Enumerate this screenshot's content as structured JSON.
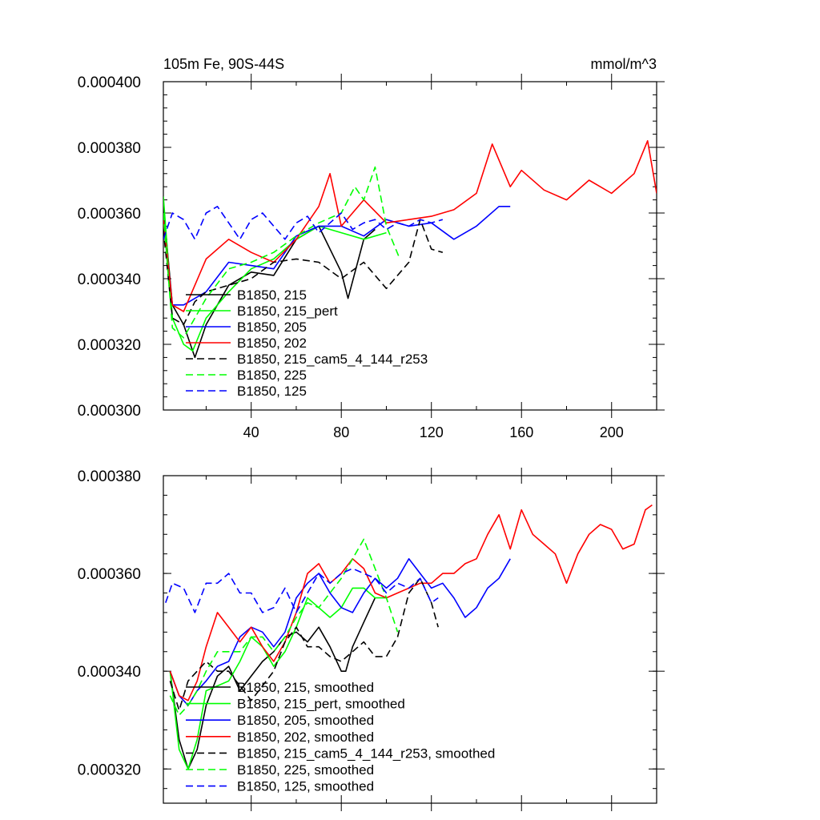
{
  "chart_data": [
    {
      "type": "line",
      "title": "105m Fe, 90S-44S",
      "units": "mmol/m^3",
      "xlabel": "",
      "ylabel": "",
      "xlim": [
        1,
        220
      ],
      "ylim": [
        0.0003,
        0.0004
      ],
      "x_ticks": [
        40,
        80,
        120,
        160,
        200
      ],
      "x_tick_labels": [
        "40",
        "80",
        "120",
        "160",
        "200"
      ],
      "y_ticks": [
        0.0003,
        0.00032,
        0.00034,
        0.00036,
        0.00038,
        0.0004
      ],
      "y_tick_labels": [
        "0.000300",
        "0.000320",
        "0.000340",
        "0.000360",
        "0.000380",
        "0.000400"
      ],
      "legend_position": "lower-left",
      "series": [
        {
          "name": "B1850, 215",
          "color": "#000000",
          "dash": "solid",
          "x": [
            1,
            5,
            10,
            15,
            20,
            30,
            40,
            50,
            60,
            70,
            80,
            83,
            90,
            95
          ],
          "y": [
            0.000362,
            0.000332,
            0.000326,
            0.000316,
            0.000326,
            0.000338,
            0.000342,
            0.000341,
            0.000352,
            0.000356,
            0.000342,
            0.000334,
            0.000352,
            0.000355
          ]
        },
        {
          "name": "B1850, 215_pert",
          "color": "#00ff00",
          "dash": "solid",
          "x": [
            1,
            5,
            10,
            14,
            20,
            30,
            40,
            50,
            60,
            70,
            80,
            90,
            100
          ],
          "y": [
            0.000365,
            0.000328,
            0.00032,
            0.000318,
            0.000328,
            0.000336,
            0.000343,
            0.000346,
            0.000352,
            0.000356,
            0.000354,
            0.000352,
            0.000354
          ]
        },
        {
          "name": "B1850, 205",
          "color": "#0000ff",
          "dash": "solid",
          "x": [
            1,
            5,
            10,
            20,
            30,
            40,
            50,
            60,
            70,
            80,
            90,
            100,
            110,
            120,
            130,
            140,
            150,
            155
          ],
          "y": [
            0.000358,
            0.000332,
            0.000332,
            0.000336,
            0.000345,
            0.000344,
            0.000343,
            0.000353,
            0.000356,
            0.000356,
            0.000353,
            0.000358,
            0.000356,
            0.000357,
            0.000352,
            0.000356,
            0.000362,
            0.000362
          ]
        },
        {
          "name": "B1850, 202",
          "color": "#ff0000",
          "dash": "solid",
          "x": [
            1,
            5,
            10,
            20,
            30,
            40,
            50,
            60,
            70,
            75,
            80,
            90,
            100,
            110,
            120,
            130,
            140,
            147,
            155,
            160,
            170,
            180,
            190,
            200,
            210,
            216,
            220
          ],
          "y": [
            0.000358,
            0.000332,
            0.00033,
            0.000346,
            0.000352,
            0.000348,
            0.000345,
            0.000352,
            0.000362,
            0.000372,
            0.000356,
            0.000364,
            0.000357,
            0.000358,
            0.000359,
            0.000361,
            0.000366,
            0.000381,
            0.000368,
            0.000373,
            0.000367,
            0.000364,
            0.00037,
            0.000366,
            0.000372,
            0.000382,
            0.000366
          ]
        },
        {
          "name": "B1850, 215_cam5_4_144_r253",
          "color": "#000000",
          "dash": "dashed",
          "x": [
            1,
            5,
            10,
            15,
            20,
            30,
            40,
            50,
            60,
            70,
            80,
            90,
            100,
            105,
            110,
            115,
            120,
            125
          ],
          "y": [
            0.000355,
            0.000328,
            0.000326,
            0.000333,
            0.000336,
            0.000338,
            0.00034,
            0.000345,
            0.000346,
            0.000345,
            0.00034,
            0.000345,
            0.000337,
            0.000341,
            0.000345,
            0.000358,
            0.000349,
            0.000348
          ]
        },
        {
          "name": "B1850, 225",
          "color": "#00ff00",
          "dash": "dashed",
          "x": [
            1,
            5,
            10,
            20,
            30,
            40,
            50,
            60,
            70,
            80,
            86,
            90,
            95,
            100,
            106
          ],
          "y": [
            0.00036,
            0.000325,
            0.000322,
            0.000334,
            0.000343,
            0.000345,
            0.000348,
            0.000353,
            0.000357,
            0.00036,
            0.000368,
            0.000364,
            0.000374,
            0.000356,
            0.000346
          ]
        },
        {
          "name": "B1850, 125",
          "color": "#0000ff",
          "dash": "dashed",
          "x": [
            1,
            5,
            10,
            15,
            20,
            25,
            30,
            35,
            40,
            45,
            50,
            55,
            60,
            65,
            70,
            75,
            80,
            85,
            90,
            95,
            100,
            105,
            110,
            115,
            120,
            125
          ],
          "y": [
            0.000352,
            0.00036,
            0.000358,
            0.000352,
            0.00036,
            0.000362,
            0.000357,
            0.000352,
            0.000358,
            0.00036,
            0.000356,
            0.000352,
            0.000357,
            0.000359,
            0.000354,
            0.000357,
            0.00036,
            0.000355,
            0.000357,
            0.000358,
            0.000355,
            0.000357,
            0.000356,
            0.000358,
            0.000357,
            0.000358
          ]
        }
      ]
    },
    {
      "type": "line",
      "title": "",
      "xlabel": "",
      "ylabel": "",
      "xlim": [
        1,
        220
      ],
      "ylim": [
        0.000313,
        0.00038
      ],
      "x_ticks": [
        40,
        80,
        120,
        160,
        200
      ],
      "y_ticks": [
        0.00032,
        0.00034,
        0.00036,
        0.00038
      ],
      "y_tick_labels": [
        "0.000320",
        "0.000340",
        "0.000360",
        "0.000380"
      ],
      "legend_position": "lower-left",
      "series": [
        {
          "name": "B1850, 215, smoothed",
          "color": "#000000",
          "dash": "solid",
          "x": [
            4,
            8,
            12,
            16,
            20,
            25,
            30,
            35,
            40,
            45,
            50,
            55,
            60,
            65,
            70,
            75,
            80,
            82,
            85,
            90,
            95
          ],
          "y": [
            0.00034,
            0.000326,
            0.00032,
            0.000324,
            0.000333,
            0.000339,
            0.000341,
            0.000336,
            0.000339,
            0.000342,
            0.000344,
            0.000347,
            0.000348,
            0.000346,
            0.000349,
            0.000345,
            0.00034,
            0.00034,
            0.000345,
            0.00035,
            0.000355
          ]
        },
        {
          "name": "B1850, 215_pert, smoothed",
          "color": "#00ff00",
          "dash": "solid",
          "x": [
            4,
            8,
            12,
            16,
            20,
            25,
            30,
            35,
            40,
            45,
            50,
            55,
            60,
            65,
            70,
            75,
            80,
            85,
            90,
            95,
            100
          ],
          "y": [
            0.00034,
            0.000324,
            0.00032,
            0.000326,
            0.000336,
            0.000337,
            0.000338,
            0.000342,
            0.000347,
            0.000345,
            0.000341,
            0.000344,
            0.000349,
            0.000355,
            0.000353,
            0.000351,
            0.000353,
            0.000357,
            0.000357,
            0.000355,
            0.000355
          ]
        },
        {
          "name": "B1850, 205, smoothed",
          "color": "#0000ff",
          "dash": "solid",
          "x": [
            4,
            8,
            12,
            16,
            20,
            25,
            30,
            35,
            40,
            45,
            50,
            55,
            60,
            65,
            70,
            75,
            80,
            85,
            90,
            95,
            100,
            105,
            110,
            115,
            120,
            125,
            130,
            135,
            140,
            145,
            150,
            155
          ],
          "y": [
            0.00034,
            0.000335,
            0.000333,
            0.000336,
            0.000338,
            0.000341,
            0.000342,
            0.000347,
            0.000349,
            0.000348,
            0.000345,
            0.000348,
            0.000355,
            0.000358,
            0.00036,
            0.000356,
            0.000353,
            0.000352,
            0.000356,
            0.000359,
            0.000357,
            0.000359,
            0.000363,
            0.00036,
            0.000357,
            0.000358,
            0.000355,
            0.000351,
            0.000353,
            0.000357,
            0.000359,
            0.000363
          ]
        },
        {
          "name": "B1850, 202, smoothed",
          "color": "#ff0000",
          "dash": "solid",
          "x": [
            4,
            8,
            12,
            16,
            20,
            25,
            30,
            35,
            40,
            45,
            50,
            55,
            60,
            65,
            70,
            75,
            80,
            85,
            90,
            95,
            100,
            105,
            110,
            115,
            120,
            125,
            130,
            135,
            140,
            145,
            150,
            155,
            160,
            165,
            170,
            175,
            180,
            185,
            190,
            195,
            200,
            205,
            210,
            215,
            218
          ],
          "y": [
            0.00034,
            0.000335,
            0.000334,
            0.000338,
            0.000345,
            0.000352,
            0.000349,
            0.000346,
            0.000349,
            0.000345,
            0.000342,
            0.000346,
            0.000352,
            0.00036,
            0.000362,
            0.000358,
            0.00036,
            0.000363,
            0.000361,
            0.000356,
            0.000355,
            0.000356,
            0.000357,
            0.000358,
            0.000358,
            0.00036,
            0.00036,
            0.000362,
            0.000363,
            0.000368,
            0.000372,
            0.000365,
            0.000373,
            0.000368,
            0.000366,
            0.000364,
            0.000358,
            0.000364,
            0.000368,
            0.00037,
            0.000369,
            0.000365,
            0.000366,
            0.000373,
            0.000374
          ]
        },
        {
          "name": "B1850, 215_cam5_4_144_r253, smoothed",
          "color": "#000000",
          "dash": "dashed",
          "x": [
            4,
            8,
            12,
            16,
            20,
            25,
            30,
            35,
            40,
            45,
            50,
            55,
            60,
            65,
            70,
            75,
            80,
            85,
            90,
            95,
            100,
            105,
            110,
            115,
            120,
            123
          ],
          "y": [
            0.000338,
            0.000332,
            0.000338,
            0.00034,
            0.000342,
            0.00034,
            0.00034,
            0.000337,
            0.000334,
            0.000337,
            0.00034,
            0.000346,
            0.000349,
            0.000345,
            0.000345,
            0.000343,
            0.000342,
            0.000344,
            0.000346,
            0.000343,
            0.000343,
            0.000347,
            0.000356,
            0.000359,
            0.000354,
            0.000349
          ]
        },
        {
          "name": "B1850, 225, smoothed",
          "color": "#00ff00",
          "dash": "dashed",
          "x": [
            4,
            8,
            12,
            16,
            20,
            25,
            30,
            35,
            40,
            45,
            50,
            55,
            60,
            65,
            70,
            75,
            80,
            85,
            90,
            95,
            100,
            105
          ],
          "y": [
            0.000335,
            0.000331,
            0.000333,
            0.000336,
            0.00034,
            0.000344,
            0.000344,
            0.000344,
            0.000347,
            0.000347,
            0.000344,
            0.000347,
            0.000351,
            0.000354,
            0.000353,
            0.000356,
            0.000359,
            0.000363,
            0.000367,
            0.000361,
            0.000355,
            0.000348
          ]
        },
        {
          "name": "B1850, 125, smoothed",
          "color": "#0000ff",
          "dash": "dashed",
          "x": [
            2,
            5,
            10,
            15,
            20,
            25,
            30,
            35,
            40,
            45,
            50,
            55,
            60,
            65,
            70,
            75,
            80,
            85,
            90,
            95,
            100,
            105,
            110,
            115,
            120,
            123
          ],
          "y": [
            0.000354,
            0.000358,
            0.000357,
            0.000352,
            0.000358,
            0.000358,
            0.00036,
            0.000356,
            0.000356,
            0.000352,
            0.000353,
            0.000357,
            0.000352,
            0.000356,
            0.00036,
            0.000358,
            0.00036,
            0.000361,
            0.00036,
            0.000359,
            0.000356,
            0.000358,
            0.000357,
            0.000359,
            0.000354,
            0.000355
          ]
        }
      ]
    }
  ]
}
